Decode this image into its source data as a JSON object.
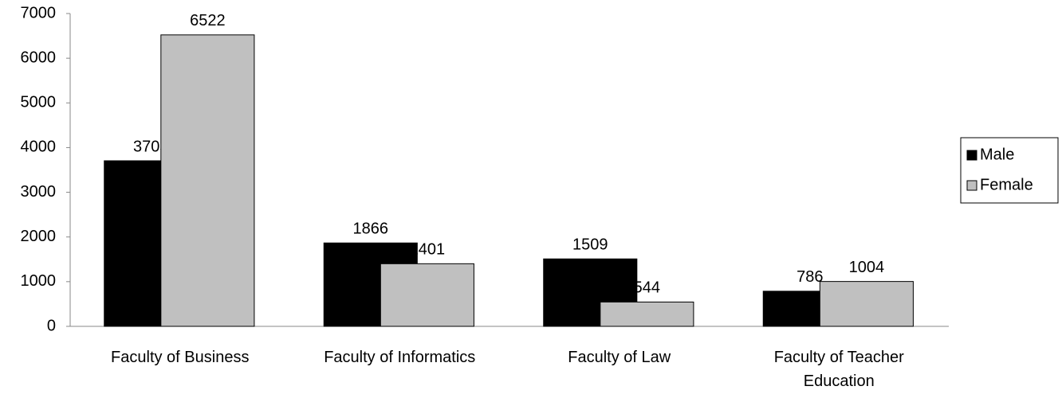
{
  "chart_data": {
    "type": "bar",
    "categories": [
      "Faculty of Business",
      "Faculty of Informatics",
      "Faculty of Law",
      "Faculty of Teacher Education"
    ],
    "series": [
      {
        "name": "Male",
        "color": "#000000",
        "values": [
          3705,
          1866,
          1509,
          786
        ]
      },
      {
        "name": "Female",
        "color": "#c0c0c0",
        "values": [
          6522,
          1401,
          544,
          1004
        ]
      }
    ],
    "ylim": [
      0,
      7000
    ],
    "yticks": [
      0,
      1000,
      2000,
      3000,
      4000,
      5000,
      6000,
      7000
    ],
    "grid": false,
    "legend": "right"
  }
}
